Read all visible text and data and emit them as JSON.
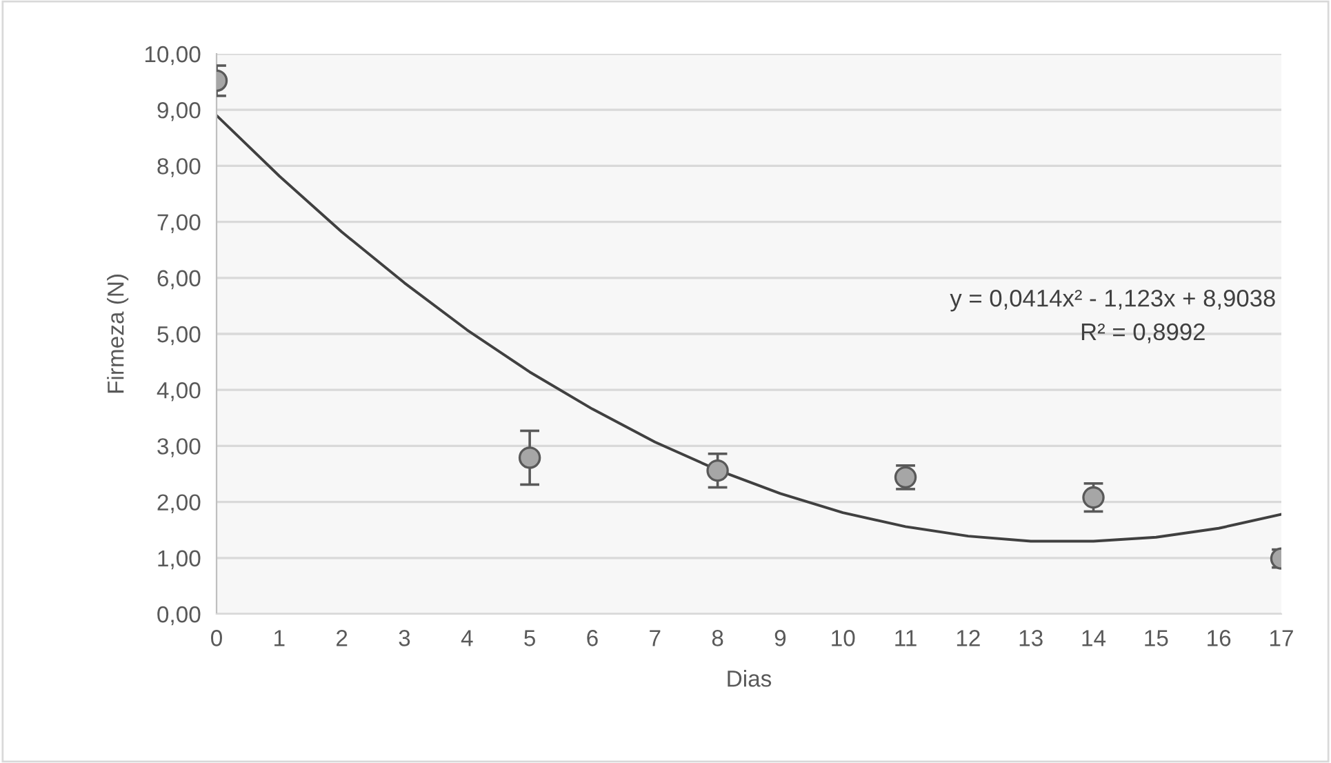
{
  "chart_data": {
    "type": "scatter",
    "xlabel": "Dias",
    "ylabel": "Firmeza (N)",
    "xlim": [
      0,
      17
    ],
    "xticks": [
      0,
      1,
      2,
      3,
      4,
      5,
      6,
      7,
      8,
      9,
      10,
      11,
      12,
      13,
      14,
      15,
      16,
      17
    ],
    "ylim": [
      0,
      10
    ],
    "yticks": [
      {
        "value": 0,
        "label": "0,00"
      },
      {
        "value": 1,
        "label": "1,00"
      },
      {
        "value": 2,
        "label": "2,00"
      },
      {
        "value": 3,
        "label": "3,00"
      },
      {
        "value": 4,
        "label": "4,00"
      },
      {
        "value": 5,
        "label": "5,00"
      },
      {
        "value": 6,
        "label": "6,00"
      },
      {
        "value": 7,
        "label": "7,00"
      },
      {
        "value": 8,
        "label": "8,00"
      },
      {
        "value": 9,
        "label": "9,00"
      },
      {
        "value": 10,
        "label": "10,00"
      }
    ],
    "grid": "y",
    "legend": false,
    "marker": "circle",
    "series": [
      {
        "color": "#a6a6a6",
        "x": [
          0,
          5,
          8,
          11,
          14,
          17
        ],
        "values": [
          9.52,
          2.79,
          2.56,
          2.44,
          2.08,
          0.99
        ],
        "errors": [
          0.27,
          0.48,
          0.3,
          0.21,
          0.25,
          0.16
        ]
      },
      {
        "type": "line",
        "color": "#404040",
        "marker": "none",
        "line_style": "solid",
        "x": [
          0,
          1,
          2,
          3,
          4,
          5,
          6,
          7,
          8,
          9,
          10,
          11,
          12,
          13,
          14,
          15,
          16,
          17
        ],
        "values": [
          8.9,
          7.82,
          6.82,
          5.91,
          5.07,
          4.32,
          3.66,
          3.07,
          2.57,
          2.15,
          1.81,
          1.56,
          1.39,
          1.3,
          1.3,
          1.37,
          1.53,
          1.78
        ]
      }
    ],
    "annotations": [
      "y = 0,0414x² - 1,123x + 8,9038",
      "R² = 0,8992"
    ]
  }
}
